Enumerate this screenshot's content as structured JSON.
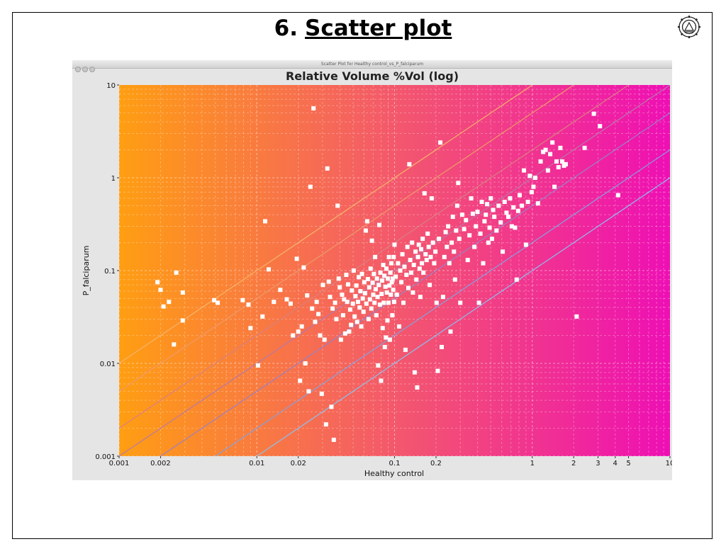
{
  "slide": {
    "number": "6.",
    "title": "Scatter plot"
  },
  "window": {
    "title": "Scatter Plot for Healthy control_vs_P_falciparum"
  },
  "chart_data": {
    "type": "scatter",
    "title": "Relative Volume %Vol (log)",
    "xlabel": "Healthy control",
    "ylabel": "P_falciparum",
    "xscale": "log",
    "yscale": "log",
    "xlim": [
      0.001,
      10
    ],
    "ylim": [
      0.001,
      10
    ],
    "grid": true,
    "x_ticks": [
      {
        "v": 0.001,
        "label": "0.001"
      },
      {
        "v": 0.002,
        "label": "0.002"
      },
      {
        "v": 0.01,
        "label": "0.01"
      },
      {
        "v": 0.02,
        "label": "0.02"
      },
      {
        "v": 0.1,
        "label": "0.1"
      },
      {
        "v": 0.2,
        "label": "0.2"
      },
      {
        "v": 1,
        "label": "1"
      },
      {
        "v": 2,
        "label": "2"
      },
      {
        "v": 3,
        "label": "3"
      },
      {
        "v": 4,
        "label": "4"
      },
      {
        "v": 5,
        "label": "5"
      },
      {
        "v": 10,
        "label": "10"
      }
    ],
    "y_ticks": [
      {
        "v": 0.001,
        "label": "0.001"
      },
      {
        "v": 0.01,
        "label": "0.01"
      },
      {
        "v": 0.1,
        "label": "0.1"
      },
      {
        "v": 1,
        "label": "1"
      },
      {
        "v": 10,
        "label": "10"
      }
    ],
    "ratio_lines": [
      {
        "ratio": 10,
        "color": "#f6b46a"
      },
      {
        "ratio": 5,
        "color": "#ee9a6a"
      },
      {
        "ratio": 2,
        "color": "#d88080"
      },
      {
        "ratio": 1,
        "color": "#b878a8"
      },
      {
        "ratio": 0.5,
        "color": "#9a80c6"
      },
      {
        "ratio": 0.2,
        "color": "#86a0de"
      },
      {
        "ratio": 0.1,
        "color": "#8cc0ee"
      }
    ],
    "point_color": "#ffffff",
    "points": [
      [
        0.0019,
        0.075
      ],
      [
        0.002,
        0.062
      ],
      [
        0.0021,
        0.041
      ],
      [
        0.0023,
        0.046
      ],
      [
        0.0026,
        0.095
      ],
      [
        0.0029,
        0.058
      ],
      [
        0.0029,
        0.029
      ],
      [
        0.0025,
        0.016
      ],
      [
        0.0049,
        0.048
      ],
      [
        0.0052,
        0.045
      ],
      [
        0.0079,
        0.048
      ],
      [
        0.0087,
        0.043
      ],
      [
        0.009,
        0.024
      ],
      [
        0.0102,
        0.0095
      ],
      [
        0.011,
        0.032
      ],
      [
        0.0115,
        0.34
      ],
      [
        0.0122,
        0.103
      ],
      [
        0.0133,
        0.046
      ],
      [
        0.0148,
        0.062
      ],
      [
        0.0165,
        0.049
      ],
      [
        0.0176,
        0.044
      ],
      [
        0.0183,
        0.02
      ],
      [
        0.0195,
        0.134
      ],
      [
        0.02,
        0.022
      ],
      [
        0.0206,
        0.0065
      ],
      [
        0.0212,
        0.025
      ],
      [
        0.0219,
        0.108
      ],
      [
        0.0225,
        0.01
      ],
      [
        0.0232,
        0.054
      ],
      [
        0.0238,
        0.005
      ],
      [
        0.0245,
        0.8
      ],
      [
        0.0252,
        0.039
      ],
      [
        0.0258,
        5.6
      ],
      [
        0.0265,
        0.028
      ],
      [
        0.0272,
        0.046
      ],
      [
        0.028,
        0.034
      ],
      [
        0.0288,
        0.02
      ],
      [
        0.0296,
        0.0047
      ],
      [
        0.0302,
        0.07
      ],
      [
        0.031,
        0.018
      ],
      [
        0.0318,
        0.0022
      ],
      [
        0.0325,
        1.26
      ],
      [
        0.0333,
        0.076
      ],
      [
        0.034,
        0.052
      ],
      [
        0.0348,
        0.0034
      ],
      [
        0.0355,
        0.039
      ],
      [
        0.0362,
        0.0015
      ],
      [
        0.037,
        0.045
      ],
      [
        0.0378,
        0.03
      ],
      [
        0.0386,
        0.5
      ],
      [
        0.0393,
        0.082
      ],
      [
        0.04,
        0.066
      ],
      [
        0.0408,
        0.018
      ],
      [
        0.0416,
        0.055
      ],
      [
        0.0423,
        0.033
      ],
      [
        0.043,
        0.049
      ],
      [
        0.0438,
        0.021
      ],
      [
        0.0446,
        0.09
      ],
      [
        0.0453,
        0.046
      ],
      [
        0.046,
        0.071
      ],
      [
        0.0468,
        0.022
      ],
      [
        0.0476,
        0.038
      ],
      [
        0.0483,
        0.026
      ],
      [
        0.049,
        0.061
      ],
      [
        0.0498,
        0.044
      ],
      [
        0.0505,
        0.1
      ],
      [
        0.0513,
        0.032
      ],
      [
        0.052,
        0.053
      ],
      [
        0.0528,
        0.069
      ],
      [
        0.0535,
        0.028
      ],
      [
        0.0543,
        0.046
      ],
      [
        0.055,
        0.085
      ],
      [
        0.0558,
        0.04
      ],
      [
        0.0565,
        0.06
      ],
      [
        0.0573,
        0.025
      ],
      [
        0.058,
        0.092
      ],
      [
        0.0588,
        0.05
      ],
      [
        0.0595,
        0.036
      ],
      [
        0.0603,
        0.075
      ],
      [
        0.061,
        0.057
      ],
      [
        0.0618,
        0.27
      ],
      [
        0.0625,
        0.044
      ],
      [
        0.0633,
        0.34
      ],
      [
        0.064,
        0.081
      ],
      [
        0.0648,
        0.03
      ],
      [
        0.0655,
        0.066
      ],
      [
        0.0663,
        0.049
      ],
      [
        0.067,
        0.105
      ],
      [
        0.0678,
        0.039
      ],
      [
        0.0685,
        0.21
      ],
      [
        0.0693,
        0.074
      ],
      [
        0.07,
        0.055
      ],
      [
        0.0708,
        0.092
      ],
      [
        0.0715,
        0.045
      ],
      [
        0.0723,
        0.14
      ],
      [
        0.073,
        0.063
      ],
      [
        0.0738,
        0.033
      ],
      [
        0.0745,
        0.082
      ],
      [
        0.0753,
        0.052
      ],
      [
        0.076,
        0.0095
      ],
      [
        0.0768,
        0.07
      ],
      [
        0.0775,
        0.31
      ],
      [
        0.0783,
        0.043
      ],
      [
        0.079,
        0.095
      ],
      [
        0.0798,
        0.0065
      ],
      [
        0.0805,
        0.056
      ],
      [
        0.0813,
        0.078
      ],
      [
        0.082,
        0.024
      ],
      [
        0.0828,
        0.115
      ],
      [
        0.0835,
        0.045
      ],
      [
        0.0843,
        0.088
      ],
      [
        0.085,
        0.015
      ],
      [
        0.0858,
        0.067
      ],
      [
        0.0865,
        0.019
      ],
      [
        0.0873,
        0.105
      ],
      [
        0.088,
        0.058
      ],
      [
        0.0888,
        0.029
      ],
      [
        0.0895,
        0.082
      ],
      [
        0.0903,
        0.045
      ],
      [
        0.091,
        0.14
      ],
      [
        0.0918,
        0.069
      ],
      [
        0.0925,
        0.018
      ],
      [
        0.0933,
        0.095
      ],
      [
        0.094,
        0.055
      ],
      [
        0.0948,
        0.12
      ],
      [
        0.0955,
        0.075
      ],
      [
        0.0963,
        0.033
      ],
      [
        0.097,
        0.082
      ],
      [
        0.0978,
        0.062
      ],
      [
        0.0985,
        0.14
      ],
      [
        0.0993,
        0.046
      ],
      [
        0.1,
        0.19
      ],
      [
        0.102,
        0.086
      ],
      [
        0.104,
        0.055
      ],
      [
        0.106,
        0.12
      ],
      [
        0.108,
        0.025
      ],
      [
        0.11,
        0.1
      ],
      [
        0.112,
        0.075
      ],
      [
        0.114,
        0.15
      ],
      [
        0.116,
        0.045
      ],
      [
        0.118,
        0.11
      ],
      [
        0.12,
        0.014
      ],
      [
        0.122,
        0.09
      ],
      [
        0.124,
        0.18
      ],
      [
        0.126,
        0.065
      ],
      [
        0.128,
        1.4
      ],
      [
        0.13,
        0.13
      ],
      [
        0.132,
        0.095
      ],
      [
        0.134,
        0.2
      ],
      [
        0.136,
        0.058
      ],
      [
        0.138,
        0.115
      ],
      [
        0.14,
        0.008
      ],
      [
        0.142,
        0.16
      ],
      [
        0.144,
        0.08
      ],
      [
        0.146,
        0.0055
      ],
      [
        0.148,
        0.14
      ],
      [
        0.15,
        0.19
      ],
      [
        0.152,
        0.105
      ],
      [
        0.154,
        0.052
      ],
      [
        0.156,
        0.17
      ],
      [
        0.158,
        0.12
      ],
      [
        0.16,
        0.22
      ],
      [
        0.162,
        0.095
      ],
      [
        0.165,
        0.68
      ],
      [
        0.168,
        0.15
      ],
      [
        0.171,
        0.13
      ],
      [
        0.174,
        0.25
      ],
      [
        0.177,
        0.18
      ],
      [
        0.18,
        0.07
      ],
      [
        0.183,
        0.14
      ],
      [
        0.186,
        0.6
      ],
      [
        0.19,
        0.2
      ],
      [
        0.194,
        0.12
      ],
      [
        0.198,
        0.16
      ],
      [
        0.202,
        0.045
      ],
      [
        0.206,
        0.0083
      ],
      [
        0.21,
        0.22
      ],
      [
        0.215,
        2.4
      ],
      [
        0.22,
        0.015
      ],
      [
        0.225,
        0.052
      ],
      [
        0.23,
        0.14
      ],
      [
        0.235,
        0.26
      ],
      [
        0.24,
        0.18
      ],
      [
        0.245,
        0.3
      ],
      [
        0.25,
        0.12
      ],
      [
        0.255,
        0.022
      ],
      [
        0.26,
        0.2
      ],
      [
        0.265,
        0.38
      ],
      [
        0.27,
        0.16
      ],
      [
        0.275,
        0.08
      ],
      [
        0.28,
        0.27
      ],
      [
        0.285,
        0.5
      ],
      [
        0.29,
        0.88
      ],
      [
        0.295,
        0.22
      ],
      [
        0.3,
        0.045
      ],
      [
        0.31,
        0.4
      ],
      [
        0.32,
        0.28
      ],
      [
        0.33,
        0.35
      ],
      [
        0.34,
        0.13
      ],
      [
        0.35,
        0.24
      ],
      [
        0.36,
        0.6
      ],
      [
        0.37,
        0.41
      ],
      [
        0.38,
        0.18
      ],
      [
        0.39,
        0.3
      ],
      [
        0.4,
        0.43
      ],
      [
        0.41,
        0.045
      ],
      [
        0.42,
        0.25
      ],
      [
        0.43,
        0.55
      ],
      [
        0.44,
        0.12
      ],
      [
        0.45,
        0.34
      ],
      [
        0.46,
        0.4
      ],
      [
        0.47,
        0.52
      ],
      [
        0.48,
        0.2
      ],
      [
        0.49,
        0.29
      ],
      [
        0.5,
        0.6
      ],
      [
        0.51,
        0.22
      ],
      [
        0.52,
        0.45
      ],
      [
        0.53,
        0.38
      ],
      [
        0.55,
        0.27
      ],
      [
        0.57,
        0.5
      ],
      [
        0.59,
        0.33
      ],
      [
        0.61,
        0.16
      ],
      [
        0.63,
        0.55
      ],
      [
        0.65,
        0.42
      ],
      [
        0.67,
        0.38
      ],
      [
        0.69,
        0.6
      ],
      [
        0.71,
        0.3
      ],
      [
        0.73,
        0.48
      ],
      [
        0.75,
        0.29
      ],
      [
        0.77,
        0.08
      ],
      [
        0.79,
        0.44
      ],
      [
        0.81,
        0.65
      ],
      [
        0.84,
        0.5
      ],
      [
        0.87,
        1.2
      ],
      [
        0.9,
        0.19
      ],
      [
        0.93,
        0.55
      ],
      [
        0.96,
        1.05
      ],
      [
        0.99,
        0.7
      ],
      [
        1.02,
        0.8
      ],
      [
        1.05,
        1.0
      ],
      [
        1.1,
        0.53
      ],
      [
        1.15,
        1.5
      ],
      [
        1.2,
        1.9
      ],
      [
        1.25,
        2.0
      ],
      [
        1.3,
        1.2
      ],
      [
        1.35,
        1.8
      ],
      [
        1.4,
        2.4
      ],
      [
        1.45,
        0.8
      ],
      [
        1.5,
        1.5
      ],
      [
        1.55,
        1.3
      ],
      [
        1.6,
        2.1
      ],
      [
        1.65,
        1.5
      ],
      [
        1.7,
        1.35
      ],
      [
        1.75,
        1.4
      ],
      [
        2.1,
        0.032
      ],
      [
        2.4,
        2.1
      ],
      [
        2.8,
        4.9
      ],
      [
        3.1,
        3.6
      ],
      [
        4.2,
        0.65
      ]
    ]
  }
}
